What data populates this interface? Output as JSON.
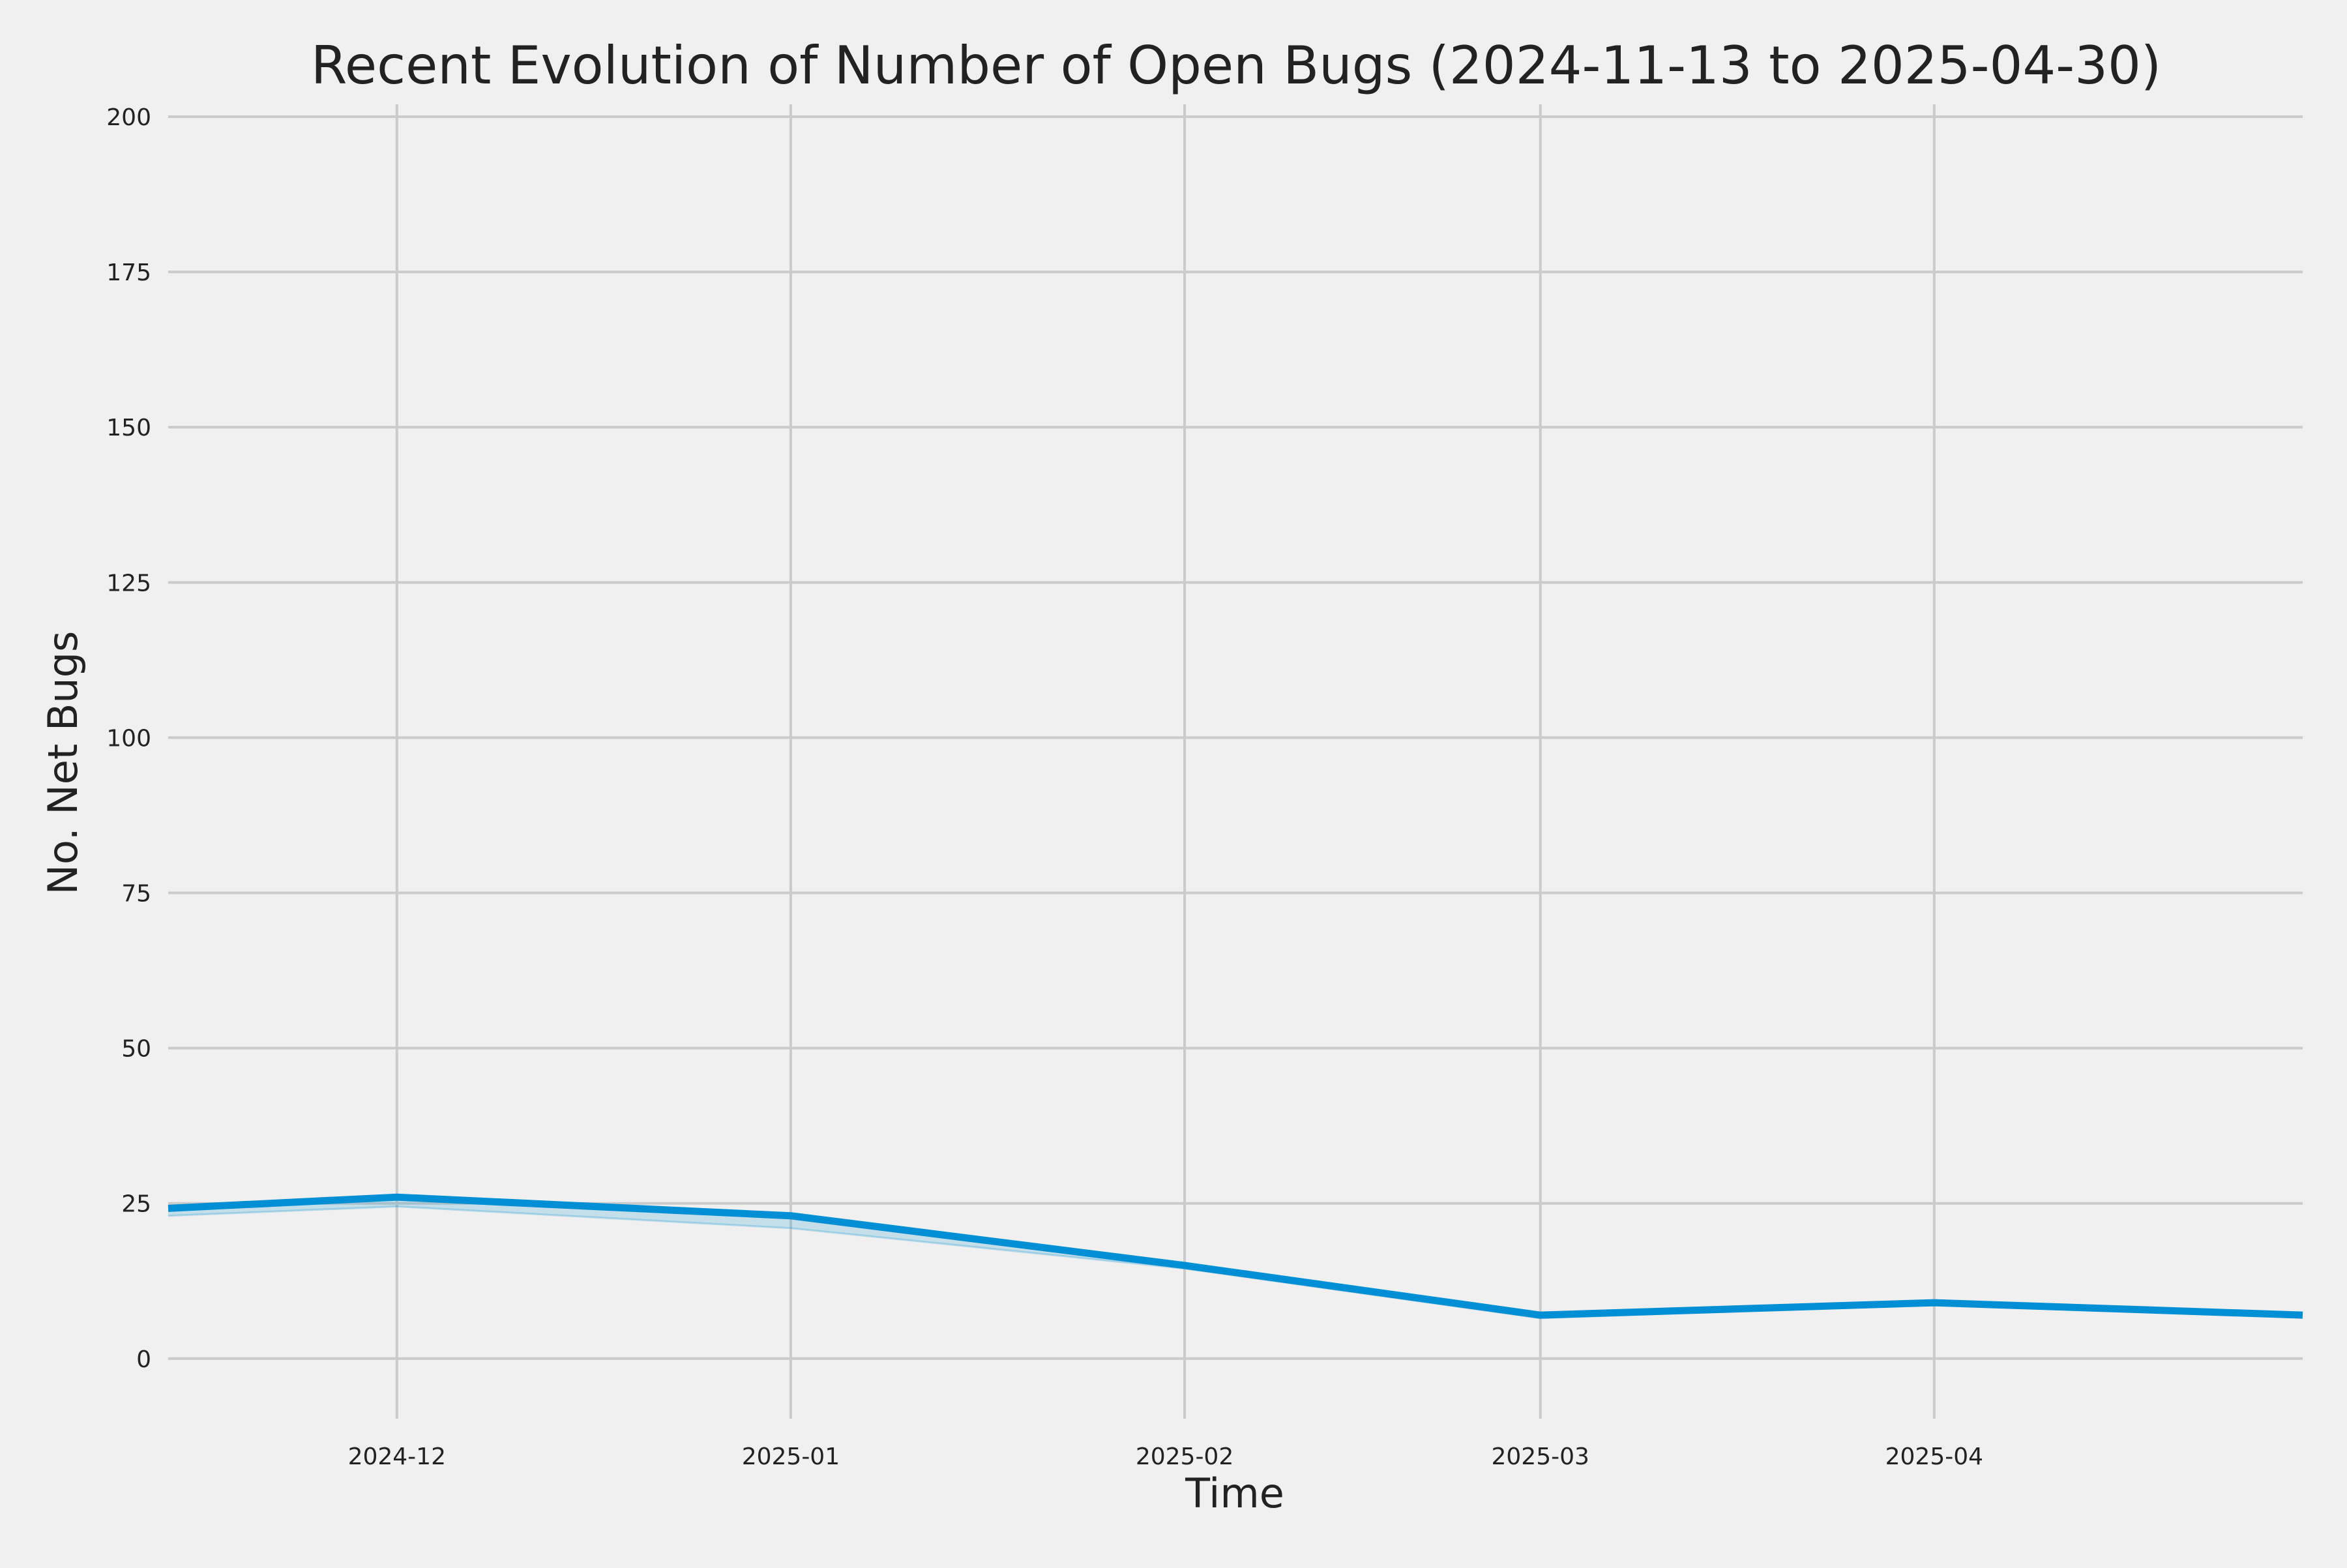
{
  "chart_data": {
    "type": "line",
    "title": "Recent Evolution of Number of Open Bugs (2024-11-13 to 2025-04-30)",
    "xlabel": "Time",
    "ylabel": "No. Net Bugs",
    "ylim": [
      -8,
      202
    ],
    "xlim": [
      "2024-11-13",
      "2025-04-30"
    ],
    "y_ticks": [
      0,
      25,
      50,
      75,
      100,
      125,
      150,
      175,
      200
    ],
    "x_ticks": [
      {
        "date": "2024-12-01",
        "label": "2024-12"
      },
      {
        "date": "2025-01-01",
        "label": "2025-01"
      },
      {
        "date": "2025-02-01",
        "label": "2025-02"
      },
      {
        "date": "2025-03-01",
        "label": "2025-03"
      },
      {
        "date": "2025-04-01",
        "label": "2025-04"
      }
    ],
    "grid": true,
    "series": [
      {
        "color": "#008fd5",
        "points": [
          {
            "x": "2024-11-13",
            "y": 24.2
          },
          {
            "x": "2024-12-01",
            "y": 26.0
          },
          {
            "x": "2025-01-01",
            "y": 23.0
          },
          {
            "x": "2025-02-01",
            "y": 15.0
          },
          {
            "x": "2025-03-01",
            "y": 7.0
          },
          {
            "x": "2025-04-01",
            "y": 9.0
          },
          {
            "x": "2025-04-30",
            "y": 7.0
          }
        ]
      }
    ],
    "band": {
      "color": "#008fd5",
      "lower": [
        {
          "x": "2024-11-13",
          "y": 23.0
        },
        {
          "x": "2024-12-01",
          "y": 24.5
        },
        {
          "x": "2025-01-01",
          "y": 21.0
        },
        {
          "x": "2025-02-01",
          "y": 14.5
        },
        {
          "x": "2025-03-01",
          "y": 6.5
        },
        {
          "x": "2025-04-01",
          "y": 8.8
        },
        {
          "x": "2025-04-30",
          "y": 7.0
        }
      ]
    },
    "colors": {
      "background": "#f0f0f0",
      "grid": "#cbcbcb",
      "text": "#222222"
    }
  }
}
